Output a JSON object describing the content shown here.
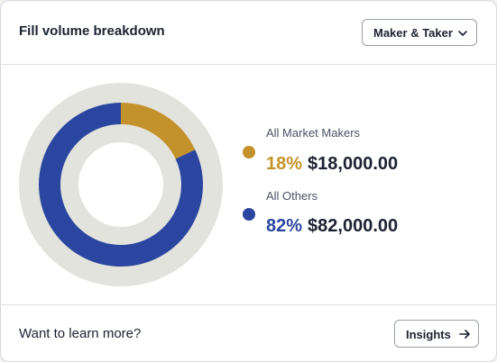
{
  "header": {
    "title": "Fill volume breakdown",
    "filter_label": "Maker & Taker"
  },
  "chart_data": {
    "type": "pie",
    "style": "donut",
    "categories": [
      "All Market Makers",
      "All Others"
    ],
    "values": [
      18000,
      82000
    ],
    "percent_labels": [
      "18%",
      "82%"
    ],
    "amount_labels": [
      "$18,000.00",
      "$82,000.00"
    ],
    "colors": [
      "#c3922a",
      "#2b46a0"
    ],
    "track_color": "#e3e3dd"
  },
  "footer": {
    "prompt": "Want to learn more?",
    "insights_label": "Insights"
  },
  "icons": {
    "filter": "chevron-down-icon",
    "insights": "arrow-right-icon"
  }
}
